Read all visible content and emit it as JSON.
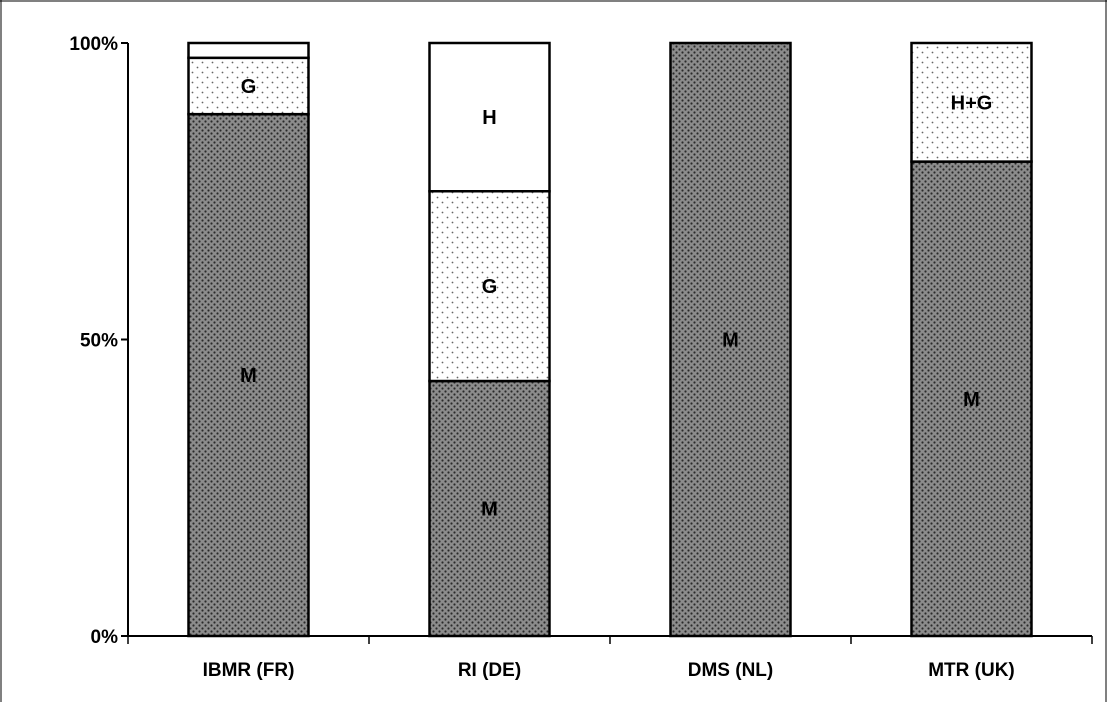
{
  "chart_data": {
    "type": "bar",
    "stacked": true,
    "percent": true,
    "categories": [
      "IBMR (FR)",
      "RI (DE)",
      "DMS (NL)",
      "MTR (UK)"
    ],
    "yticks": [
      "0%",
      "50%",
      "100%"
    ],
    "ylim": [
      0,
      100
    ],
    "grid": false,
    "legend": "none",
    "bars": [
      {
        "category": "IBMR (FR)",
        "segments": [
          {
            "label": "M",
            "value": 88,
            "fill": "dark-dotted"
          },
          {
            "label": "G",
            "value": 9.5,
            "fill": "light-dotted"
          },
          {
            "label": "",
            "value": 2.5,
            "fill": "white"
          }
        ]
      },
      {
        "category": "RI (DE)",
        "segments": [
          {
            "label": "M",
            "value": 43,
            "fill": "dark-dotted"
          },
          {
            "label": "G",
            "value": 32,
            "fill": "light-dotted"
          },
          {
            "label": "H",
            "value": 25,
            "fill": "white"
          }
        ]
      },
      {
        "category": "DMS (NL)",
        "segments": [
          {
            "label": "M",
            "value": 100,
            "fill": "dark-dotted"
          }
        ]
      },
      {
        "category": "MTR (UK)",
        "segments": [
          {
            "label": "M",
            "value": 80,
            "fill": "dark-dotted"
          },
          {
            "label": "H+G",
            "value": 20,
            "fill": "light-dotted"
          }
        ]
      }
    ],
    "colors": {
      "dark": "#8c8c8c",
      "dark_dot": "#2a2a2a",
      "light": "#ffffff",
      "light_dot": "#666666",
      "stroke": "#000000"
    }
  }
}
